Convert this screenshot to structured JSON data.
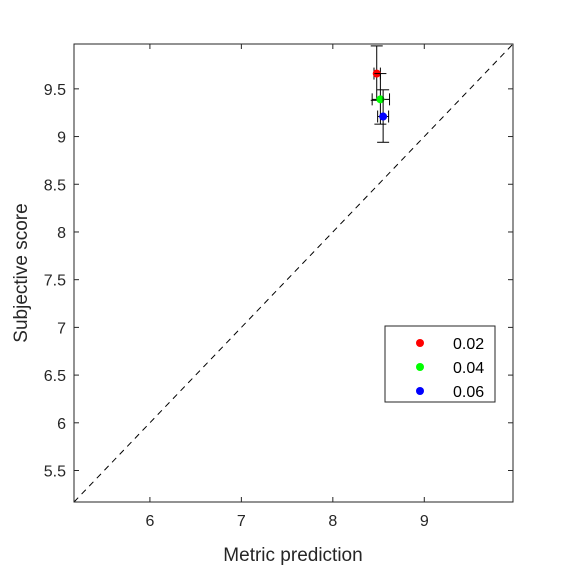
{
  "chart_data": {
    "type": "scatter",
    "xlabel": "Metric prediction",
    "ylabel": "Subjective score",
    "xlim": [
      5.17,
      9.97
    ],
    "ylim": [
      5.17,
      9.97
    ],
    "xticks": [
      6,
      7,
      8,
      9
    ],
    "yticks": [
      5.5,
      6,
      6.5,
      7,
      7.5,
      8,
      8.5,
      9,
      9.5
    ],
    "xtick_labels": [
      "6",
      "7",
      "8",
      "9"
    ],
    "ytick_labels": [
      "5.5",
      "6",
      "6.5",
      "7",
      "7.5",
      "8",
      "8.5",
      "9",
      "9.5"
    ],
    "reference_line": "y = x (dashed)",
    "grid": false,
    "legend_position": "lower-right",
    "series": [
      {
        "name": "0.02",
        "color": "#ff0000",
        "x": 8.48,
        "y": 9.66,
        "y_error": [
          9.38,
          9.95
        ],
        "x_error": [
          8.45,
          8.52
        ]
      },
      {
        "name": "0.04",
        "color": "#00ff00",
        "x": 8.52,
        "y": 9.39,
        "y_error": [
          9.13,
          9.66
        ],
        "x_error": [
          8.43,
          8.62
        ]
      },
      {
        "name": "0.06",
        "color": "#0000ff",
        "x": 8.55,
        "y": 9.21,
        "y_error": [
          8.94,
          9.49
        ],
        "x_error": [
          8.49,
          8.61
        ]
      }
    ]
  }
}
